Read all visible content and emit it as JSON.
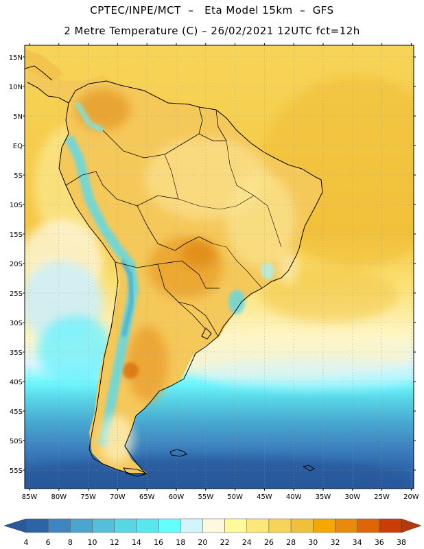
{
  "title_line1": "CPTEC/INPE/MCT  –   Eta Model 15km  –  GFS",
  "title_line2": "2 Metre Temperature (C) – 26/02/2021 12UTC fct=12h",
  "lat_labels": [
    "15N",
    "10N",
    "5N",
    "EQ",
    "5S",
    "10S",
    "15S",
    "20S",
    "25S",
    "30S",
    "35S",
    "40S",
    "45S",
    "50S",
    "55S"
  ],
  "lon_labels": [
    "85W",
    "80W",
    "75W",
    "70W",
    "65W",
    "60W",
    "55W",
    "50W",
    "45W",
    "40W",
    "35W",
    "30W",
    "25W",
    "20W"
  ],
  "colorbar": {
    "labels": [
      "4",
      "6",
      "8",
      "10",
      "12",
      "14",
      "16",
      "18",
      "20",
      "22",
      "24",
      "26",
      "28",
      "30",
      "32",
      "34",
      "36",
      "38"
    ],
    "colors": [
      "#2c64a8",
      "#3f85c0",
      "#4aa5cf",
      "#55bedb",
      "#58d6e6",
      "#5ae6ef",
      "#66ffff",
      "#d2f5fc",
      "#fdf9e1",
      "#fffb9b",
      "#fbe87a",
      "#f6d45a",
      "#f0bf3b",
      "#f6a800",
      "#ea8a0c",
      "#e06408",
      "#c83e04"
    ],
    "low_color": "#2a5a9c",
    "high_color": "#b23a0e"
  }
}
